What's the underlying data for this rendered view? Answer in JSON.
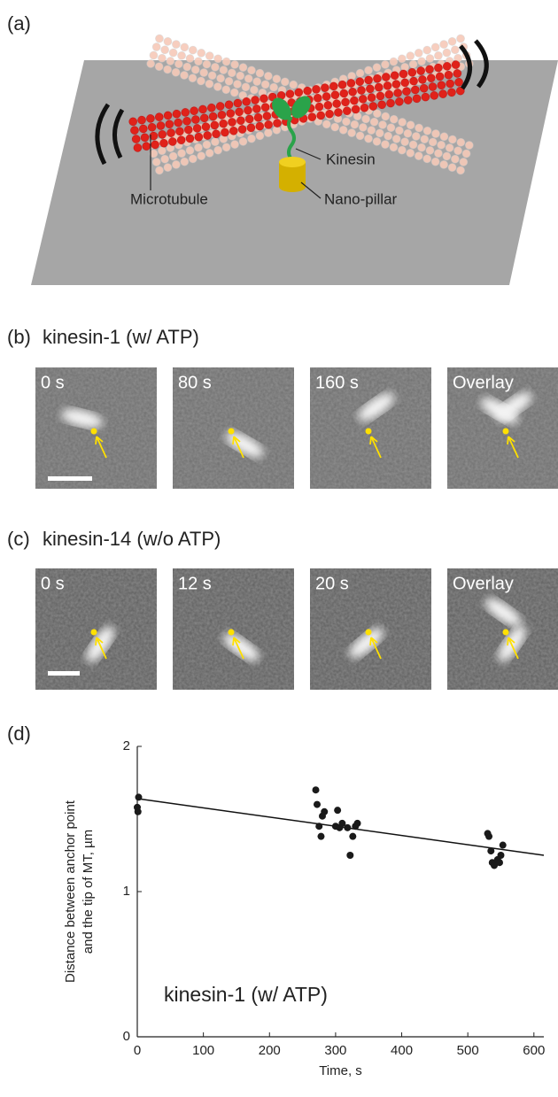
{
  "panels": {
    "a": {
      "label": "(a)",
      "kinesin": "Kinesin",
      "microtubule": "Microtubule",
      "pillar": "Nano-pillar"
    },
    "b": {
      "label": "(b)",
      "title": "kinesin-1 (w/ ATP)",
      "frames": [
        "0 s",
        "80 s",
        "160 s",
        "Overlay"
      ]
    },
    "c": {
      "label": "(c)",
      "title": "kinesin-14 (w/o ATP)",
      "frames": [
        "0 s",
        "12 s",
        "20 s",
        "Overlay"
      ]
    },
    "d": {
      "label": "(d)"
    }
  },
  "chart_data": {
    "type": "scatter",
    "annotation": "kinesin-1 (w/ ATP)",
    "x_label": "Time, s",
    "y_label": [
      "Distance between anchor point",
      "and the tip of MT, µm"
    ],
    "x": [
      0,
      1,
      2,
      270,
      272,
      275,
      278,
      280,
      283,
      300,
      303,
      306,
      310,
      318,
      322,
      326,
      330,
      333,
      530,
      532,
      535,
      537,
      540,
      545,
      548,
      550,
      553
    ],
    "y": [
      1.58,
      1.55,
      1.65,
      1.7,
      1.6,
      1.45,
      1.38,
      1.52,
      1.55,
      1.45,
      1.56,
      1.44,
      1.47,
      1.44,
      1.25,
      1.38,
      1.45,
      1.47,
      1.4,
      1.38,
      1.28,
      1.2,
      1.18,
      1.22,
      1.2,
      1.25,
      1.32
    ],
    "color": "#1a1a1a",
    "fit_line": {
      "x": [
        0,
        615
      ],
      "y": [
        1.64,
        1.25
      ]
    },
    "xlim": [
      0,
      615
    ],
    "ylim": [
      0,
      2
    ],
    "xticks": [
      0,
      100,
      200,
      300,
      400,
      500,
      600
    ],
    "yticks": [
      0,
      1,
      2
    ]
  }
}
